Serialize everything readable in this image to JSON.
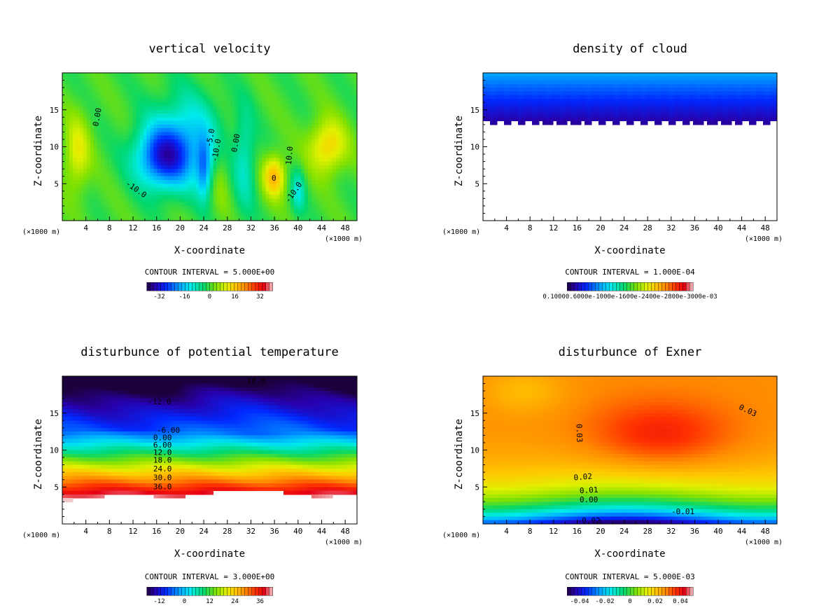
{
  "figure": {
    "axis_x_label": "X-coordinate",
    "axis_z_label": "Z-coordinate",
    "unit_label": "(×1000 m)",
    "x_ticks": [
      "4",
      "8",
      "12",
      "16",
      "20",
      "24",
      "28",
      "32",
      "36",
      "40",
      "44",
      "48"
    ],
    "z_ticks": [
      "5",
      "10",
      "15"
    ]
  },
  "chart_data": [
    {
      "type": "heatmap",
      "title": "vertical velocity",
      "xlabel": "X-coordinate",
      "ylabel": "Z-coordinate",
      "xlim": [
        0,
        50
      ],
      "ylim": [
        0,
        20
      ],
      "contour_interval_text": "CONTOUR INTERVAL = 5.000E+00",
      "colorbar_range": [
        -40,
        40
      ],
      "colorbar_labels": [
        "-32",
        "-16",
        "0",
        "16",
        "32"
      ],
      "contour_labels": [
        {
          "text": "0.00",
          "x": 6,
          "y": 14,
          "rot": -80
        },
        {
          "text": "-10.0",
          "x": 12.5,
          "y": 4.2,
          "rot": 35
        },
        {
          "text": "-10.0",
          "x": 26.2,
          "y": 9.5,
          "rot": -80
        },
        {
          "text": "-5.0",
          "x": 25.2,
          "y": 11.2,
          "rot": -80
        },
        {
          "text": "0.00",
          "x": 29.5,
          "y": 10.5,
          "rot": -80
        },
        {
          "text": "10.0",
          "x": 38.6,
          "y": 8.8,
          "rot": -85
        },
        {
          "text": "-10.0",
          "x": 39.3,
          "y": 3.8,
          "rot": -55
        },
        {
          "text": "0",
          "x": 35.9,
          "y": 5.7,
          "rot": 0
        }
      ]
    },
    {
      "type": "heatmap",
      "title": "density of cloud",
      "xlabel": "X-coordinate",
      "ylabel": "Z-coordinate",
      "xlim": [
        0,
        50
      ],
      "ylim": [
        0,
        20
      ],
      "contour_interval_text": "CONTOUR INTERVAL = 1.000E-04",
      "colorbar_range": [
        0,
        0.0012
      ],
      "colorbar_labels_text": "0.10000.6000e-1000e-1600e-2400e-2800e-3000e-03",
      "contour_labels": []
    },
    {
      "type": "heatmap",
      "title": "disturbunce of potential temperature",
      "xlabel": "X-coordinate",
      "ylabel": "Z-coordinate",
      "xlim": [
        0,
        50
      ],
      "ylim": [
        0,
        20
      ],
      "contour_interval_text": "CONTOUR INTERVAL = 3.000E+00",
      "colorbar_range": [
        -18,
        42
      ],
      "colorbar_labels": [
        "-12",
        "0",
        "12",
        "24",
        "36"
      ],
      "contour_labels": [
        {
          "text": "-18.0",
          "x": 32.5,
          "y": 19.3,
          "rot": 0
        },
        {
          "text": "-12.0",
          "x": 16.5,
          "y": 16.5,
          "rot": 0
        },
        {
          "text": "-6.00",
          "x": 18,
          "y": 12.6,
          "rot": 0
        },
        {
          "text": "0.00",
          "x": 17,
          "y": 11.6,
          "rot": 0
        },
        {
          "text": "6.00",
          "x": 17,
          "y": 10.6,
          "rot": 0
        },
        {
          "text": "12.0",
          "x": 17,
          "y": 9.6,
          "rot": 0
        },
        {
          "text": "18.0",
          "x": 17,
          "y": 8.6,
          "rot": 0
        },
        {
          "text": "24.0",
          "x": 17,
          "y": 7.4,
          "rot": 0
        },
        {
          "text": "30.0",
          "x": 17,
          "y": 6.2,
          "rot": 0
        },
        {
          "text": "36.0",
          "x": 17,
          "y": 5.0,
          "rot": 0
        }
      ]
    },
    {
      "type": "heatmap",
      "title": "disturbunce of Exner",
      "xlabel": "X-coordinate",
      "ylabel": "Z-coordinate",
      "xlim": [
        0,
        50
      ],
      "ylim": [
        0,
        20
      ],
      "contour_interval_text": "CONTOUR INTERVAL = 5.000E-03",
      "colorbar_range": [
        -0.05,
        0.05
      ],
      "colorbar_labels": [
        "-0.04",
        "-0.02",
        "0",
        "0.02",
        "0.04"
      ],
      "contour_labels": [
        {
          "text": "0.03",
          "x": 45,
          "y": 15.3,
          "rot": 25
        },
        {
          "text": "0.03",
          "x": 16.3,
          "y": 12.3,
          "rot": 88
        },
        {
          "text": "0.02",
          "x": 17,
          "y": 6.3,
          "rot": -5
        },
        {
          "text": "0.01",
          "x": 18,
          "y": 4.5,
          "rot": -3
        },
        {
          "text": "0.00",
          "x": 18,
          "y": 3.2,
          "rot": 0
        },
        {
          "text": "-0.01",
          "x": 34,
          "y": 1.6,
          "rot": 0
        },
        {
          "text": "-0.02",
          "x": 18,
          "y": 0.4,
          "rot": 0
        }
      ]
    }
  ]
}
